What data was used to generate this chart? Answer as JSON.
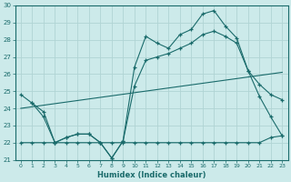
{
  "xlabel": "Humidex (Indice chaleur)",
  "xlim": [
    -0.5,
    23.5
  ],
  "ylim": [
    21,
    30
  ],
  "yticks": [
    21,
    22,
    23,
    24,
    25,
    26,
    27,
    28,
    29,
    30
  ],
  "xticks": [
    0,
    1,
    2,
    3,
    4,
    5,
    6,
    7,
    8,
    9,
    10,
    11,
    12,
    13,
    14,
    15,
    16,
    17,
    18,
    19,
    20,
    21,
    22,
    23
  ],
  "bg_color": "#cceaea",
  "grid_color": "#b0d4d4",
  "line_color": "#1a6b6b",
  "line1_x": [
    0,
    1,
    2,
    3,
    4,
    5,
    6,
    7,
    8,
    9,
    10,
    11,
    12,
    13,
    14,
    15,
    16,
    17,
    18,
    19,
    20,
    21,
    22,
    23
  ],
  "line1_y": [
    24.8,
    24.3,
    23.5,
    22.0,
    22.3,
    22.5,
    22.5,
    22.0,
    21.1,
    22.1,
    26.4,
    28.2,
    27.8,
    27.5,
    28.3,
    28.6,
    29.5,
    29.7,
    28.8,
    28.1,
    26.2,
    24.7,
    23.5,
    22.4
  ],
  "line2_x": [
    0,
    1,
    2,
    3,
    4,
    5,
    6,
    7,
    8,
    9,
    10,
    11,
    12,
    13,
    14,
    15,
    16,
    17,
    18,
    19,
    20,
    21,
    22,
    23
  ],
  "line2_y": [
    22.0,
    22.0,
    22.0,
    22.0,
    22.0,
    22.0,
    22.0,
    22.0,
    22.0,
    22.0,
    22.0,
    22.0,
    22.0,
    22.0,
    22.0,
    22.0,
    22.0,
    22.0,
    22.0,
    22.0,
    22.0,
    22.0,
    22.3,
    22.4
  ],
  "line3_x": [
    1,
    2,
    3,
    4,
    5,
    6,
    7,
    8,
    9,
    10,
    11,
    12,
    13,
    14,
    15,
    16,
    17,
    18,
    19,
    20,
    21,
    22,
    23
  ],
  "line3_y": [
    24.3,
    23.8,
    22.0,
    22.3,
    22.5,
    22.5,
    22.0,
    21.1,
    22.1,
    25.3,
    26.8,
    27.0,
    27.2,
    27.5,
    27.8,
    28.3,
    28.5,
    28.2,
    27.8,
    26.2,
    25.4,
    24.8,
    24.5
  ],
  "line4_x": [
    0,
    23
  ],
  "line4_y": [
    24.0,
    26.1
  ]
}
